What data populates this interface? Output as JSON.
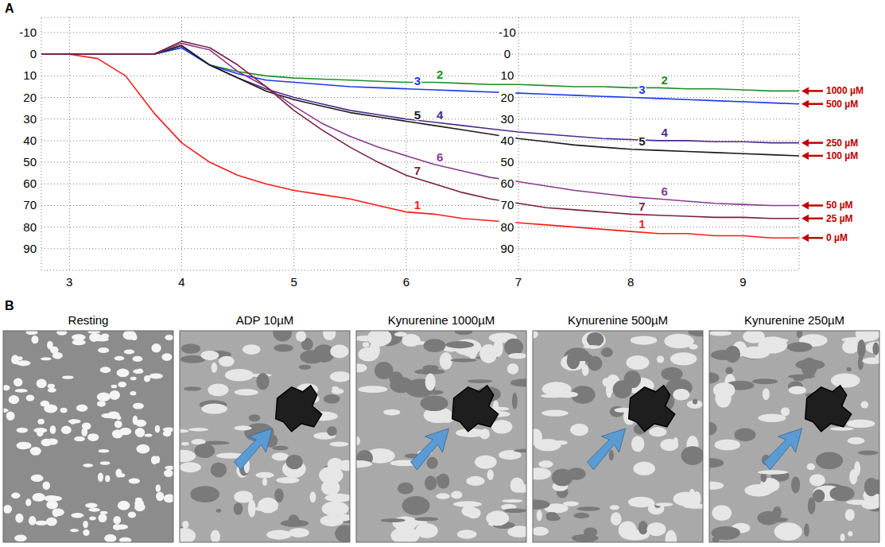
{
  "panel_labels": {
    "a": "A",
    "b": "B"
  },
  "chart_data": {
    "type": "line",
    "x": [
      2.75,
      3,
      3.25,
      3.5,
      3.75,
      4,
      4.25,
      4.5,
      4.75,
      5,
      5.25,
      5.5,
      5.75,
      6,
      6.25,
      6.5,
      6.75,
      7,
      7.25,
      7.5,
      7.75,
      8,
      8.25,
      8.5,
      8.75,
      9,
      9.25,
      9.5
    ],
    "xlim": [
      2.75,
      9.5
    ],
    "xticks": [
      3,
      4,
      5,
      6,
      7,
      8,
      9
    ],
    "ylim": [
      -17,
      100
    ],
    "yticks": [
      -10,
      0,
      10,
      20,
      30,
      40,
      50,
      60,
      70,
      80,
      90
    ],
    "y2lim": [
      -17,
      100
    ],
    "y2ticks": [
      -10,
      0,
      10,
      20,
      30,
      40,
      50,
      60,
      70,
      80,
      90
    ],
    "grid": true,
    "series": [
      {
        "name": "1",
        "label": "0 µM",
        "color": "#ff1a1a",
        "values": [
          0,
          0,
          2,
          10,
          27,
          41,
          50,
          56,
          60,
          63,
          65,
          67,
          70,
          73,
          74,
          76,
          77,
          78,
          79,
          80,
          81,
          82,
          83,
          83,
          84,
          84,
          85,
          85
        ]
      },
      {
        "name": "2",
        "label": "1000 µM",
        "color": "#1f8f2a",
        "values": [
          0,
          0,
          0,
          0,
          0,
          -3,
          5,
          8,
          10,
          11,
          11.5,
          12,
          12.5,
          13,
          13,
          13.5,
          14,
          14,
          14.5,
          15,
          15,
          15.5,
          15.5,
          16,
          16,
          16.5,
          17,
          17
        ]
      },
      {
        "name": "3",
        "label": "500 µM",
        "color": "#1a3ae6",
        "values": [
          0,
          0,
          0,
          0,
          0,
          -3,
          5,
          9,
          12,
          13,
          14,
          15,
          15.5,
          16,
          16.5,
          17,
          17.5,
          18,
          18.5,
          19,
          19.5,
          20,
          20.5,
          21,
          21.5,
          22,
          22.5,
          23
        ]
      },
      {
        "name": "4",
        "label": "250 µM",
        "color": "#4b2a8c",
        "values": [
          0,
          0,
          0,
          0,
          0,
          -4,
          5,
          11,
          16,
          20,
          23,
          26,
          28,
          30,
          31.5,
          33,
          34.5,
          36,
          37,
          38,
          39,
          39.5,
          40,
          40,
          40.5,
          40.5,
          41,
          41
        ]
      },
      {
        "name": "5",
        "label": "100 µM",
        "color": "#1a1a1a",
        "values": [
          0,
          0,
          0,
          0,
          0,
          -4,
          5,
          11,
          17,
          21,
          24,
          27,
          29,
          31,
          33,
          35,
          37,
          39,
          40.5,
          42,
          43,
          44,
          44.5,
          45,
          45.5,
          46,
          46.5,
          47
        ]
      },
      {
        "name": "6",
        "label": "50 µM",
        "color": "#8a3a8e",
        "values": [
          0,
          0,
          0,
          0,
          0,
          -5,
          -2,
          8,
          15,
          24,
          32,
          38,
          43,
          47,
          51,
          54,
          57,
          59,
          61,
          63,
          64.5,
          66,
          67,
          68,
          69,
          69.5,
          70,
          70
        ]
      },
      {
        "name": "7",
        "label": "25 µM",
        "color": "#7a1f40",
        "values": [
          0,
          0,
          0,
          0,
          0,
          -6,
          -3,
          5,
          15,
          26,
          35,
          43,
          50,
          56,
          60,
          64,
          67,
          69,
          71,
          72,
          73,
          74,
          74.5,
          75,
          75.5,
          75.5,
          76,
          76
        ]
      }
    ]
  },
  "panel_b": {
    "images": [
      {
        "title": "Resting",
        "arrow": false
      },
      {
        "title": "ADP 10µM",
        "arrow": true
      },
      {
        "title": "Kynurenine 1000µM",
        "arrow": true
      },
      {
        "title": "Kynurenine 500µM",
        "arrow": true
      },
      {
        "title": "Kynurenine 250µM",
        "arrow": true
      }
    ]
  }
}
